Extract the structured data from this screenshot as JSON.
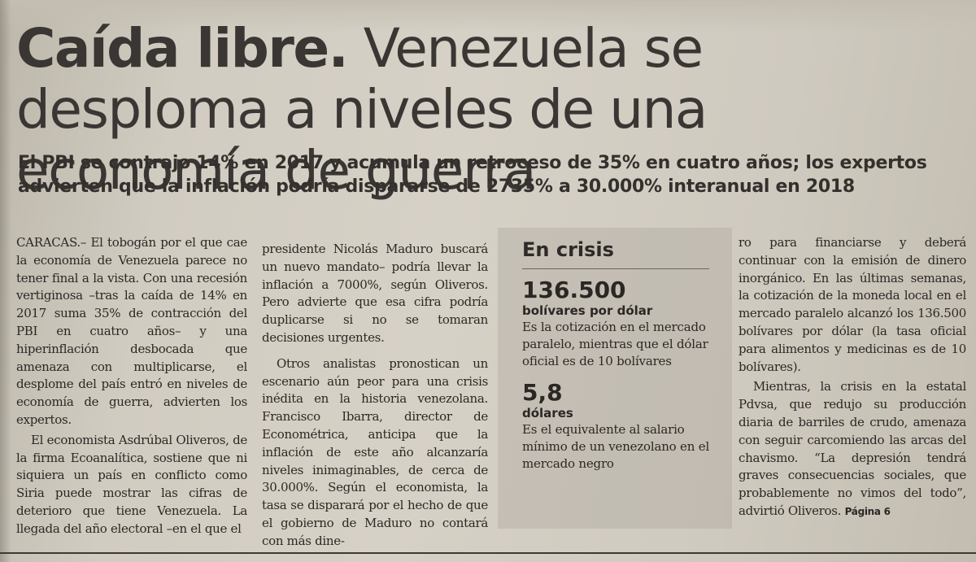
{
  "article": {
    "headline_kicker": "Caída libre.",
    "headline_rest": "Venezuela se desploma a niveles de una economía de guerra",
    "deck": "El PBI se contrajo 14% en 2017 y acumula un retroceso de 35% en cuatro años; los expertos advierten que la inflación podría dispararse de 2735% a 30.000% interanual en 2018",
    "col1": {
      "p1": "CARACAS.– El tobogán por el que cae la economía de Venezuela parece no tener final a la vista. Con una recesión vertiginosa –tras la caída de 14% en 2017 suma 35% de contracción del PBI en cuatro años– y una hiperinflación desbocada que amenaza con multiplicarse, el desplome del país entró en niveles de economía de guerra, advierten los expertos.",
      "p2": "El economista Asdrúbal Oliveros, de la firma Ecoanalítica, sostiene que ni siquiera un país en conflicto como Siria puede mostrar las cifras de deterioro que tiene Venezuela. La llegada del año electoral –en el que el"
    },
    "col2": {
      "p1": "presidente Nicolás Maduro buscará un nuevo mandato– podría llevar la inflación a 7000%, según Oliveros. Pero advierte que esa cifra podría duplicarse si no se tomaran decisiones urgentes.",
      "p2": "Otros analistas pronostican un escenario aún peor para una crisis inédita en la historia venezolana. Francisco Ibarra, director de Econométrica, anticipa que la inflación de este año alcanzaría niveles inimaginables, de cerca de 30.000%. Según el economista, la tasa se disparará por el hecho de que el gobierno de Maduro no contará con más dine-"
    },
    "col4": {
      "p1": "ro para financiarse y deberá continuar con la emisión de dinero inorgánico. En las últimas semanas, la cotización de la moneda local en el mercado paralelo alcanzó los 136.500 bolívares por dólar (la tasa oficial para alimentos y medicinas es de 10 bolívares).",
      "p2": "Mientras, la crisis en la estatal Pdvsa, que redujo su producción diaria de barriles de crudo, amenaza con seguir carcomiendo las arcas del chavismo. “La depresión tendrá graves consecuencias sociales, que probablemente no vimos del todo”, advirtió Oliveros.",
      "page_ref": "Página 6"
    }
  },
  "sidebar": {
    "title": "En crisis",
    "stats": [
      {
        "figure": "136.500",
        "unit": "bolívares por dólar",
        "description": "Es la cotización en el mercado paralelo, mientras que el dólar oficial es de 10 bolívares"
      },
      {
        "figure": "5,8",
        "unit": "dólares",
        "description": "Es el equivalente al salario mínimo de un venezolano en el mercado negro"
      }
    ]
  }
}
